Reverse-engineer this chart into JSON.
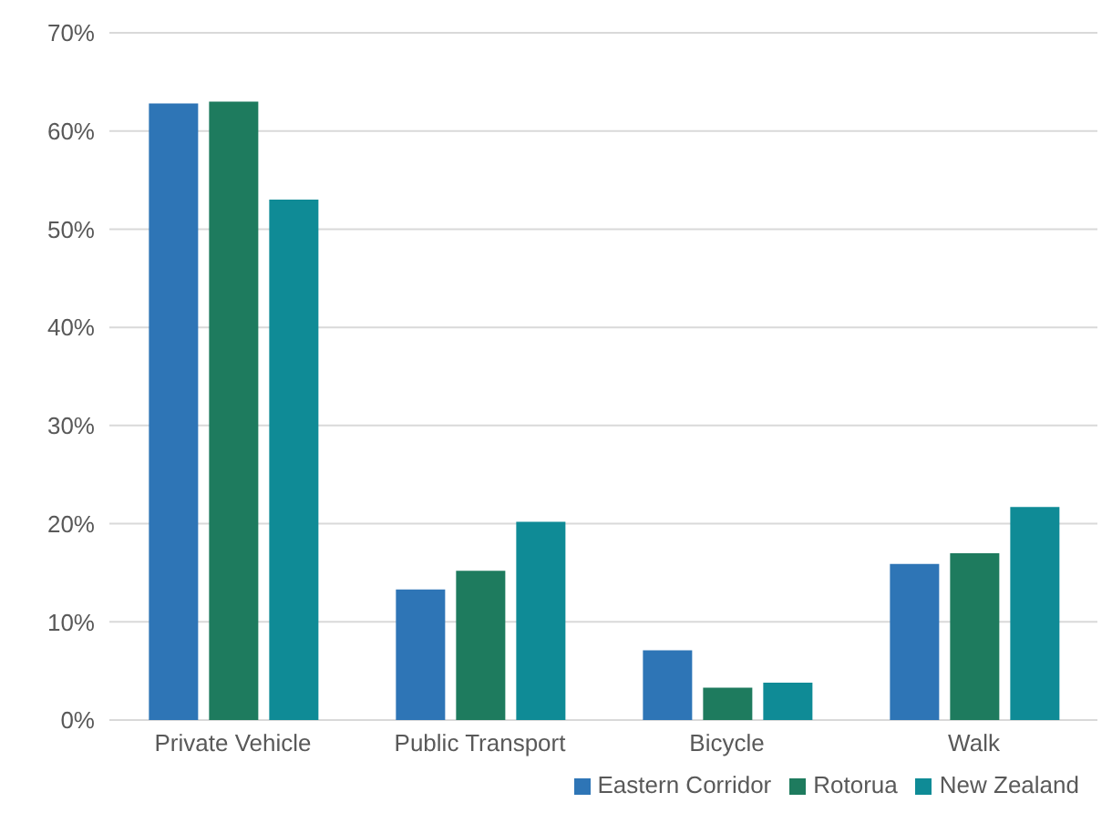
{
  "chart_data": {
    "type": "bar",
    "categories": [
      "Private Vehicle",
      "Public Transport",
      "Bicycle",
      "Walk"
    ],
    "series": [
      {
        "name": "Eastern Corridor",
        "color": "#2e75b6",
        "values": [
          62.8,
          13.3,
          7.1,
          15.9
        ]
      },
      {
        "name": "Rotorua",
        "color": "#1e7b5e",
        "values": [
          63,
          15.2,
          3.3,
          17
        ]
      },
      {
        "name": "New Zealand",
        "color": "#0f8b96",
        "values": [
          53,
          20.2,
          3.8,
          21.7
        ]
      }
    ],
    "ylim": [
      0,
      70
    ],
    "yticks": [
      {
        "value": 0,
        "label": "0%"
      },
      {
        "value": 10,
        "label": "10%"
      },
      {
        "value": 20,
        "label": "20%"
      },
      {
        "value": 30,
        "label": "30%"
      },
      {
        "value": 40,
        "label": "40%"
      },
      {
        "value": 50,
        "label": "50%"
      },
      {
        "value": 60,
        "label": "60%"
      },
      {
        "value": 70,
        "label": "70%"
      }
    ],
    "grid": "y",
    "legend": "bottom right"
  }
}
